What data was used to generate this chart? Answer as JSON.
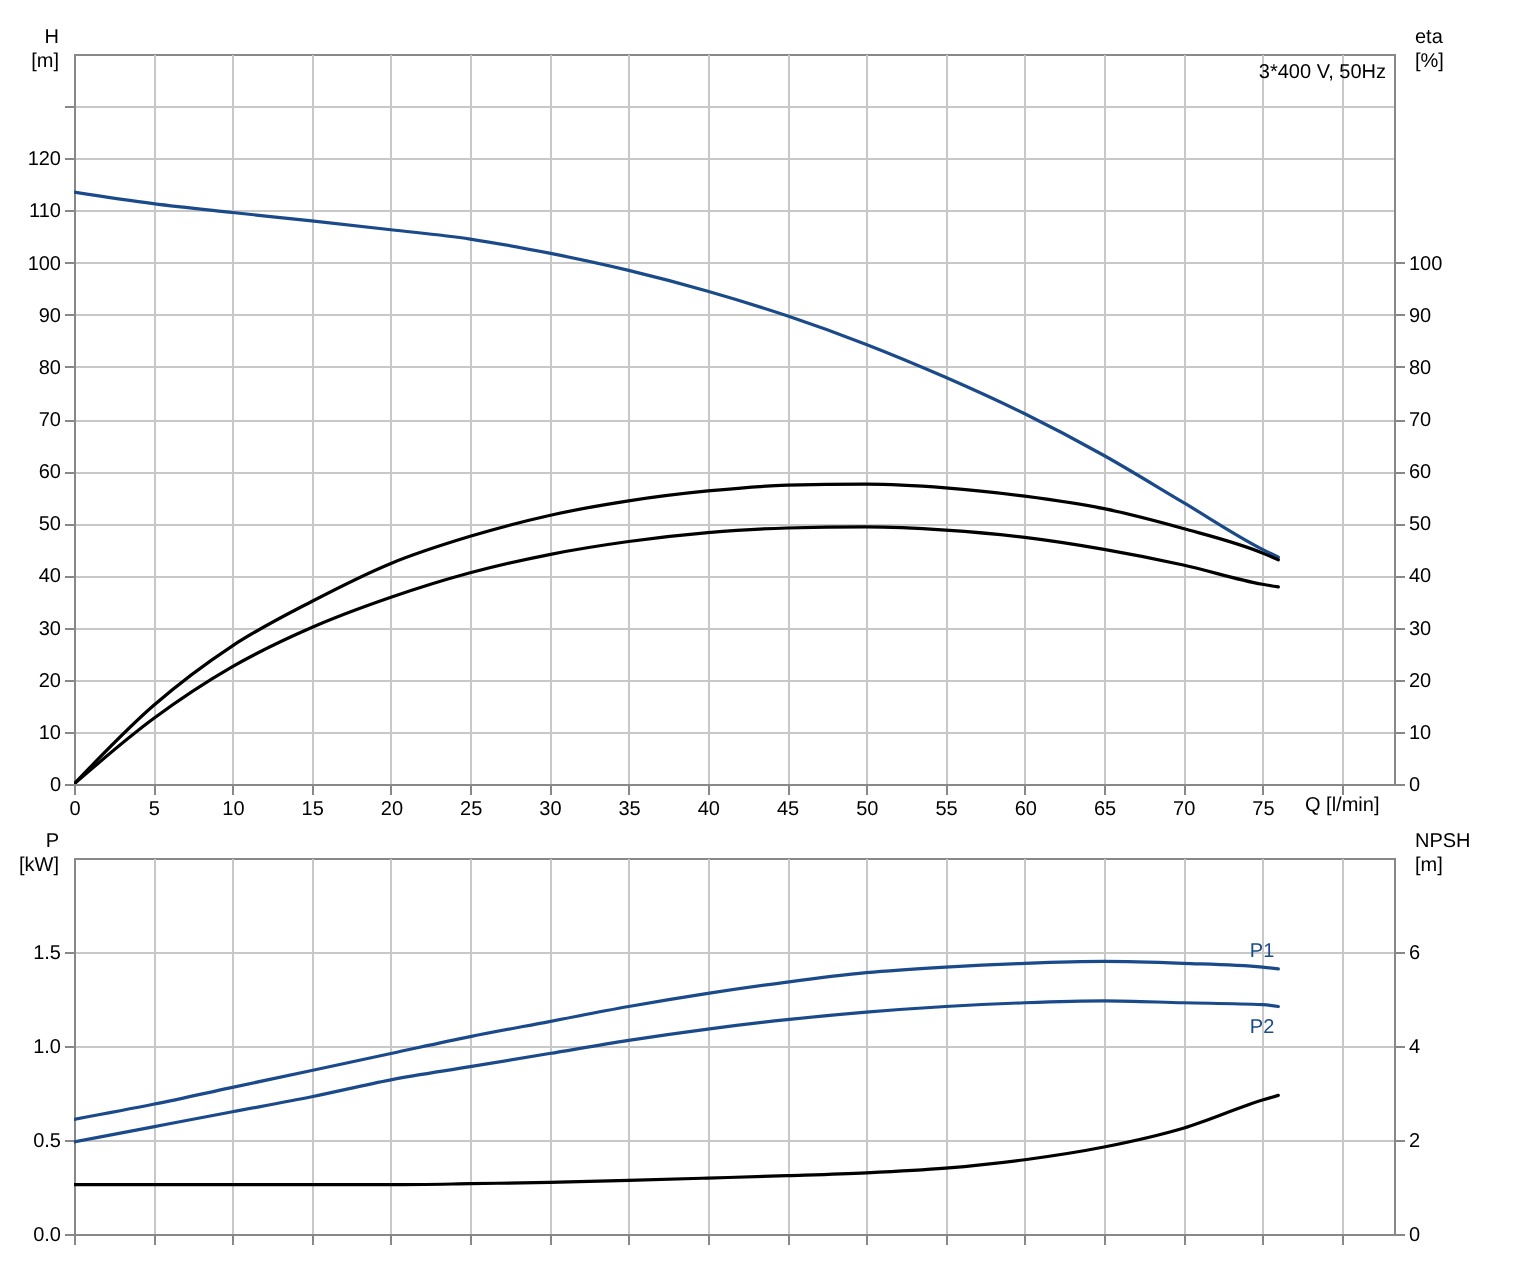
{
  "chart_data": [
    {
      "type": "line",
      "ylabel": "H [m]",
      "y2label": "eta [%]",
      "xlabel": "Q [l/min]",
      "annotations": [
        "3*400 V, 50Hz"
      ],
      "grid": true,
      "x": [
        0,
        5,
        10,
        15,
        20,
        25,
        30,
        35,
        40,
        45,
        50,
        55,
        60,
        65,
        70,
        75,
        76
      ],
      "xlim": [
        0,
        83.3
      ],
      "xticks": [
        0,
        5,
        10,
        15,
        20,
        25,
        30,
        35,
        40,
        45,
        50,
        55,
        60,
        65,
        70,
        75,
        {
          "value": 80,
          "label": null
        }
      ],
      "ylim": [
        0,
        140
      ],
      "yticks": [
        0,
        10,
        20,
        30,
        40,
        50,
        60,
        70,
        80,
        90,
        100,
        110,
        120,
        {
          "value": 130,
          "label": null
        }
      ],
      "y2lim": [
        0,
        140
      ],
      "y2ticks": [
        0,
        10,
        20,
        30,
        40,
        50,
        60,
        70,
        80,
        90,
        100
      ],
      "series": [
        {
          "color": "#1a4a8a",
          "values": [
            113.5,
            111.3,
            109.6,
            108,
            106.3,
            104.5,
            101.8,
            98.5,
            94.5,
            89.8,
            84.3,
            78,
            71,
            63,
            54,
            45,
            43.5
          ]
        },
        {
          "color": "#000000",
          "axis": "y2",
          "values": [
            0,
            15,
            26.5,
            35,
            42.3,
            47.5,
            51.5,
            54.3,
            56.2,
            57.3,
            57.5,
            56.8,
            55.2,
            52.8,
            49,
            44.3,
            43
          ]
        },
        {
          "color": "#000000",
          "axis": "y2",
          "values": [
            0,
            12.5,
            22.5,
            30,
            35.8,
            40.5,
            44,
            46.5,
            48.2,
            49.1,
            49.3,
            48.7,
            47.3,
            45,
            42,
            38.3,
            37.8
          ]
        }
      ]
    },
    {
      "type": "line",
      "ylabel": "P [kW]",
      "y2label": "NPSH [m]",
      "grid": true,
      "tick_labels": "y",
      "x": [
        0,
        5,
        10,
        15,
        20,
        25,
        30,
        35,
        40,
        45,
        50,
        55,
        60,
        65,
        70,
        75,
        76
      ],
      "xlim": [
        0,
        83.3
      ],
      "xticks": [
        0,
        5,
        10,
        15,
        20,
        25,
        30,
        35,
        40,
        45,
        50,
        55,
        60,
        65,
        70,
        75,
        80
      ],
      "ylim": [
        0,
        2
      ],
      "yticks": [
        {
          "value": 0,
          "label": "0.0"
        },
        0.5,
        {
          "value": 1,
          "label": "1.0"
        },
        1.5
      ],
      "y2lim": [
        0,
        8
      ],
      "y2ticks": [
        0,
        2,
        4,
        6
      ],
      "series": [
        {
          "name": "P1",
          "color": "#1a4a8a",
          "values": [
            0.61,
            0.69,
            0.78,
            0.87,
            0.96,
            1.05,
            1.13,
            1.21,
            1.28,
            1.34,
            1.39,
            1.42,
            1.44,
            1.45,
            1.44,
            1.42,
            1.41
          ]
        },
        {
          "name": "P2",
          "color": "#1a4a8a",
          "values": [
            0.49,
            0.57,
            0.65,
            0.73,
            0.82,
            0.89,
            0.96,
            1.03,
            1.09,
            1.14,
            1.18,
            1.21,
            1.23,
            1.24,
            1.23,
            1.22,
            1.21
          ]
        },
        {
          "color": "#000000",
          "axis": "y2",
          "values": [
            1.05,
            1.05,
            1.05,
            1.05,
            1.05,
            1.07,
            1.1,
            1.14,
            1.19,
            1.24,
            1.3,
            1.4,
            1.58,
            1.85,
            2.25,
            2.85,
            2.95
          ]
        }
      ]
    }
  ]
}
